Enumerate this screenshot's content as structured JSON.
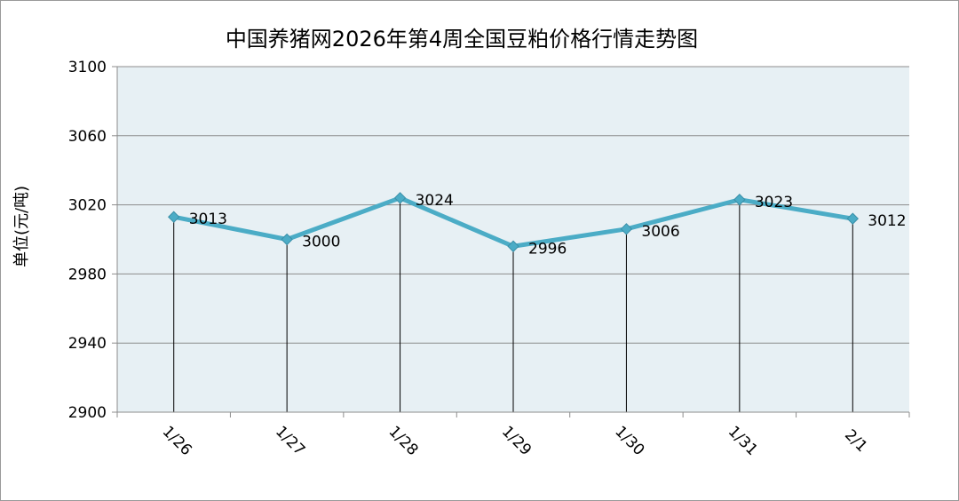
{
  "chart_data": {
    "type": "line",
    "title": "中国养猪网2026年第4周全国豆粕价格行情走势图",
    "xlabel": "",
    "ylabel": "单位(元/吨)",
    "categories": [
      "1/26",
      "1/27",
      "1/28",
      "1/29",
      "1/30",
      "1/31",
      "2/1"
    ],
    "series": [
      {
        "values": [
          3013,
          3000,
          3024,
          2996,
          3006,
          3023,
          3012
        ]
      }
    ],
    "ylim": [
      2900,
      3100
    ],
    "yticks": [
      2900,
      2940,
      2980,
      3020,
      3060,
      3100
    ],
    "grid": true,
    "legend": "none",
    "colors": {
      "plot_background": "#E7F0F4",
      "line": "#4BACC6",
      "gridline": "#8C8C8C",
      "drop_line": "#000000"
    }
  }
}
